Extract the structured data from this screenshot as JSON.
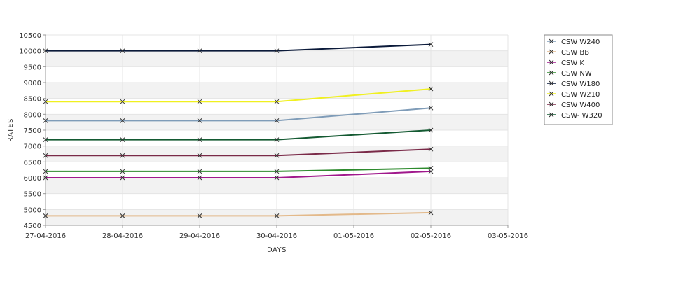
{
  "chart_data": {
    "type": "line",
    "title": "",
    "xlabel": "DAYS",
    "ylabel": "RATES",
    "x": [
      "27-04-2016",
      "28-04-2016",
      "29-04-2016",
      "30-04-2016",
      "01-05-2016",
      "02-05-2016",
      "03-05-2016"
    ],
    "ylim": [
      4500,
      10500
    ],
    "yticks": [
      4500,
      5000,
      5500,
      6000,
      6500,
      7000,
      7500,
      8000,
      8500,
      9000,
      9500,
      10000,
      10500
    ],
    "grid": true,
    "legend_position": "right",
    "series": [
      {
        "name": "CSW  W240",
        "color": "#7f9cb8",
        "points": [
          [
            "27-04-2016",
            7800
          ],
          [
            "28-04-2016",
            7800
          ],
          [
            "29-04-2016",
            7800
          ],
          [
            "30-04-2016",
            7800
          ],
          [
            "02-05-2016",
            8200
          ]
        ]
      },
      {
        "name": "CSW BB",
        "color": "#e3b98a",
        "points": [
          [
            "27-04-2016",
            4800
          ],
          [
            "28-04-2016",
            4800
          ],
          [
            "29-04-2016",
            4800
          ],
          [
            "30-04-2016",
            4800
          ],
          [
            "02-05-2016",
            4900
          ]
        ]
      },
      {
        "name": "CSW K",
        "color": "#a0188c",
        "points": [
          [
            "27-04-2016",
            6000
          ],
          [
            "28-04-2016",
            6000
          ],
          [
            "29-04-2016",
            6000
          ],
          [
            "30-04-2016",
            6000
          ],
          [
            "02-05-2016",
            6200
          ]
        ]
      },
      {
        "name": "CSW NW",
        "color": "#2e8b2e",
        "points": [
          [
            "27-04-2016",
            6200
          ],
          [
            "28-04-2016",
            6200
          ],
          [
            "29-04-2016",
            6200
          ],
          [
            "30-04-2016",
            6200
          ],
          [
            "02-05-2016",
            6300
          ]
        ]
      },
      {
        "name": "CSW W180",
        "color": "#0b1a3a",
        "points": [
          [
            "27-04-2016",
            10000
          ],
          [
            "28-04-2016",
            10000
          ],
          [
            "29-04-2016",
            10000
          ],
          [
            "30-04-2016",
            10000
          ],
          [
            "02-05-2016",
            10200
          ]
        ]
      },
      {
        "name": "CSW W210",
        "color": "#f0f020",
        "points": [
          [
            "27-04-2016",
            8400
          ],
          [
            "28-04-2016",
            8400
          ],
          [
            "29-04-2016",
            8400
          ],
          [
            "30-04-2016",
            8400
          ],
          [
            "02-05-2016",
            8800
          ]
        ]
      },
      {
        "name": "CSW W400",
        "color": "#7a2a48",
        "points": [
          [
            "27-04-2016",
            6700
          ],
          [
            "28-04-2016",
            6700
          ],
          [
            "29-04-2016",
            6700
          ],
          [
            "30-04-2016",
            6700
          ],
          [
            "02-05-2016",
            6900
          ]
        ]
      },
      {
        "name": "CSW- W320",
        "color": "#145a32",
        "points": [
          [
            "27-04-2016",
            7200
          ],
          [
            "28-04-2016",
            7200
          ],
          [
            "29-04-2016",
            7200
          ],
          [
            "30-04-2016",
            7200
          ],
          [
            "02-05-2016",
            7500
          ]
        ]
      }
    ]
  }
}
